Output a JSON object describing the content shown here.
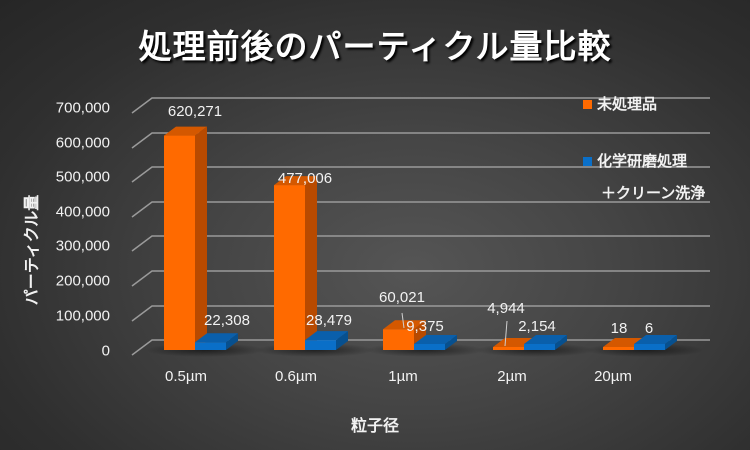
{
  "chart_data": {
    "type": "bar",
    "title": "処理前後のパーティクル量比較",
    "xlabel": "粒子径",
    "ylabel": "パーティクル量",
    "categories": [
      "0.5µm",
      "0.6µm",
      "1µm",
      "2µm",
      "20µm"
    ],
    "series": [
      {
        "name": "未処理品",
        "color": "#ff6a00",
        "values": [
          620271,
          477006,
          60021,
          4944,
          18
        ]
      },
      {
        "name": "化学研磨処理 + クリーン洗浄",
        "color": "#0a6fc8",
        "values": [
          22308,
          28479,
          9375,
          2154,
          6
        ]
      }
    ],
    "data_labels": {
      "series0": [
        "620,271",
        "477,006",
        "60,021",
        "4,944",
        "18"
      ],
      "series1": [
        "22,308",
        "28,479",
        "9,375",
        "2,154",
        "6"
      ]
    },
    "ylim": [
      0,
      700000
    ],
    "yticks": [
      "0",
      "100,000",
      "200,000",
      "300,000",
      "400,000",
      "500,000",
      "600,000",
      "700,000"
    ],
    "grid": true,
    "legend_position": "right",
    "style": "3d-column"
  },
  "title": "処理前後のパーティクル量比較",
  "axis": {
    "xlabel": "粒子径",
    "ylabel": "パーティクル量",
    "yticks": [
      "700,000",
      "600,000",
      "500,000",
      "400,000",
      "300,000",
      "200,000",
      "100,000",
      "0"
    ],
    "xticks": [
      "0.5µm",
      "0.6µm",
      "1µm",
      "2µm",
      "20µm"
    ]
  },
  "legend": {
    "items": [
      {
        "label": "未処理品",
        "color": "#ff6a00"
      },
      {
        "label": "化学研磨処理",
        "label_cont": "＋クリーン洗浄",
        "color": "#0a6fc8"
      }
    ]
  },
  "labels": {
    "s0": [
      "620,271",
      "477,006",
      "60,021",
      "4,944",
      "18"
    ],
    "s1": [
      "22,308",
      "28,479",
      "9,375",
      "2,154",
      "6"
    ]
  }
}
